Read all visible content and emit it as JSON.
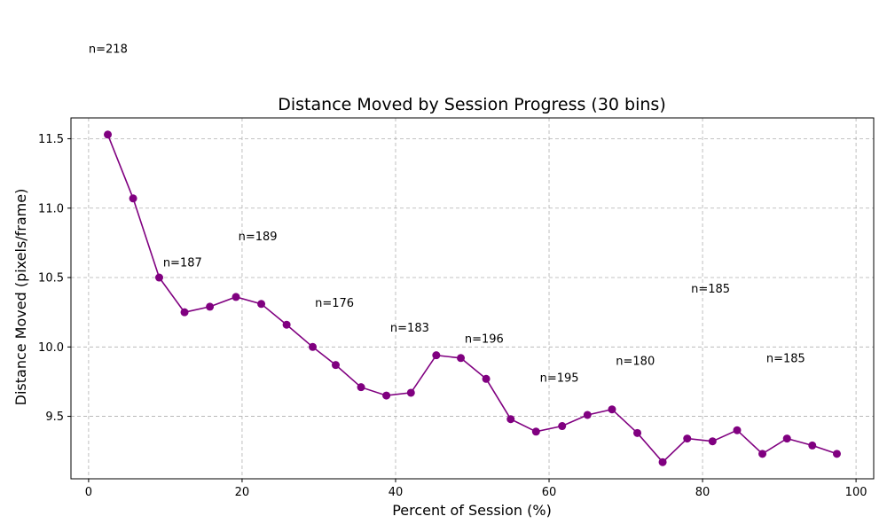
{
  "chart_data": {
    "type": "line",
    "title": "Distance Moved by Session Progress (30 bins)",
    "xlabel": "Percent of Session (%)",
    "ylabel": "Distance Moved (pixels/frame)",
    "xlim": [
      -2.3,
      102.3
    ],
    "ylim": [
      9.05,
      11.65
    ],
    "xticks": [
      0,
      20,
      40,
      60,
      80,
      100
    ],
    "xtick_labels": [
      "0",
      "20",
      "40",
      "60",
      "80",
      "100"
    ],
    "yticks": [
      9.5,
      10.0,
      10.5,
      11.0,
      11.5
    ],
    "ytick_labels": [
      "9.5",
      "10.0",
      "10.5",
      "11.0",
      "11.5"
    ],
    "grid": true,
    "grid_style": "dashed",
    "line_color": "#800080",
    "marker": "circle",
    "series": [
      {
        "x": [
          2.5,
          5.8,
          9.2,
          12.5,
          15.8,
          19.2,
          22.5,
          25.8,
          29.2,
          32.2,
          35.5,
          38.8,
          42.0,
          45.3,
          48.5,
          51.8,
          55.0,
          58.3,
          61.7,
          65.0,
          68.2,
          71.5,
          74.8,
          78.0,
          81.3,
          84.5,
          87.8,
          91.0,
          94.3,
          97.5
        ],
        "y": [
          11.53,
          11.07,
          10.5,
          10.25,
          10.29,
          10.36,
          10.31,
          10.16,
          10.0,
          9.87,
          9.71,
          9.65,
          9.67,
          9.94,
          9.92,
          9.77,
          9.48,
          9.39,
          9.43,
          9.51,
          9.55,
          9.38,
          9.17,
          9.34,
          9.32,
          9.4,
          9.23,
          9.34,
          9.29,
          9.23
        ]
      }
    ],
    "annotations": [
      {
        "text": "n=218",
        "x": 0.0,
        "y": 12.12
      },
      {
        "text": "n=187",
        "x": 9.7,
        "y": 10.58
      },
      {
        "text": "n=189",
        "x": 19.5,
        "y": 10.77
      },
      {
        "text": "n=176",
        "x": 29.5,
        "y": 10.29
      },
      {
        "text": "n=183",
        "x": 39.3,
        "y": 10.11
      },
      {
        "text": "n=196",
        "x": 49.0,
        "y": 10.03
      },
      {
        "text": "n=195",
        "x": 58.8,
        "y": 9.75
      },
      {
        "text": "n=180",
        "x": 68.7,
        "y": 9.87
      },
      {
        "text": "n=185",
        "x": 78.5,
        "y": 10.39
      },
      {
        "text": "n=185",
        "x": 88.3,
        "y": 9.89
      }
    ]
  }
}
